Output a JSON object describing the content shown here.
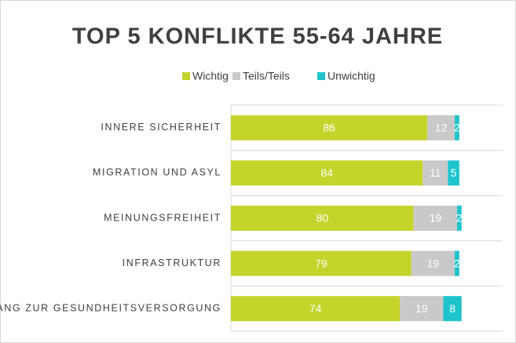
{
  "chart_data": {
    "type": "stacked_bar_horizontal",
    "title": "TOP 5 KONFLIKTE 55-64 JAHRE",
    "categories": [
      "INNERE SICHERHEIT",
      "MIGRATION UND ASYL",
      "MEINUNGSFREIHEIT",
      "INFRASTRUKTUR",
      "ZUGANG ZUR GESUNDHEITSVERSORGUNG"
    ],
    "series": [
      {
        "name": "Wichtig",
        "color": "#c3d42b",
        "values": [
          86,
          84,
          80,
          79,
          74
        ]
      },
      {
        "name": "Teils/Teils",
        "color": "#c9c9c9",
        "values": [
          12,
          11,
          19,
          19,
          19
        ]
      },
      {
        "name": "Unwichtig",
        "color": "#1ec3cc",
        "values": [
          2,
          5,
          2,
          2,
          8
        ]
      }
    ],
    "xlim": [
      0,
      120
    ],
    "legend": "top"
  }
}
